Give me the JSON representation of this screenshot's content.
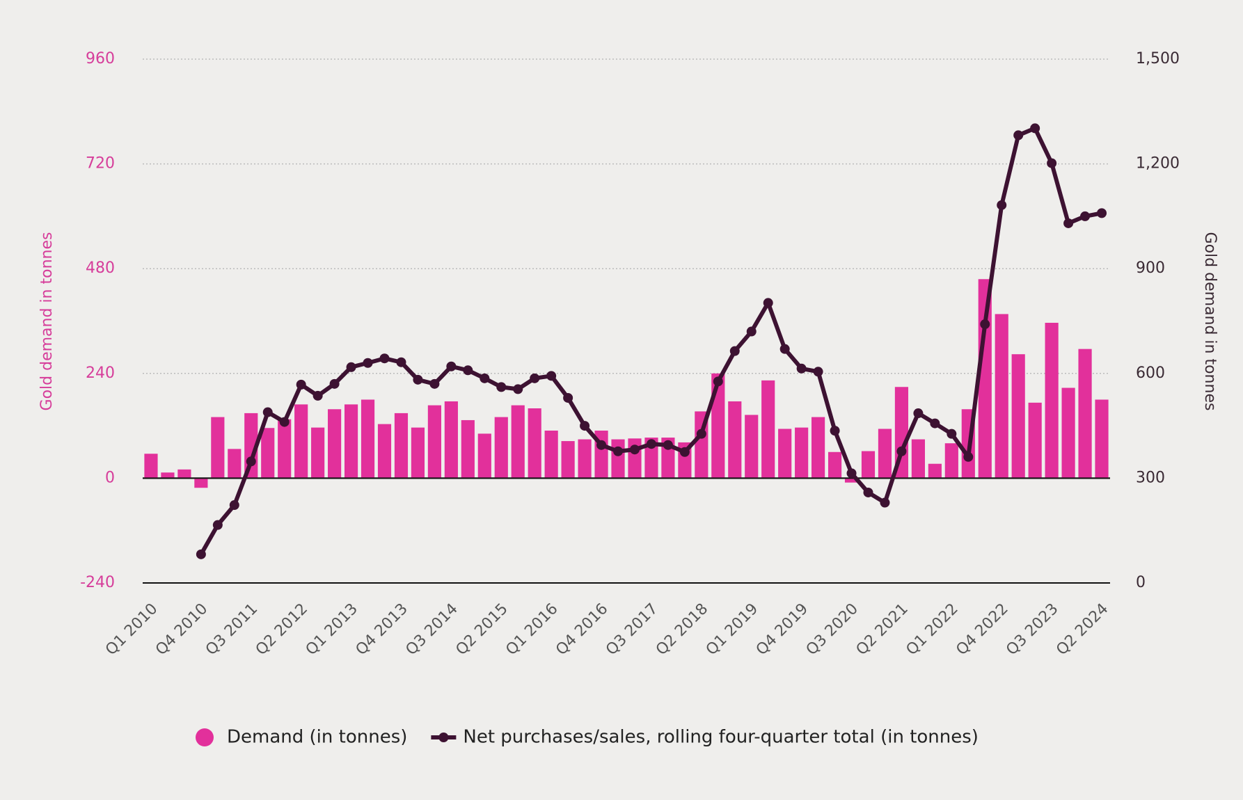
{
  "chart_data": {
    "type": "bar",
    "ylabel": "Gold demand in tonnes",
    "y2label": "Gold demand in tonnes",
    "categories": [
      "Q1 2010",
      null,
      null,
      "Q4 2010",
      null,
      null,
      "Q3 2011",
      null,
      null,
      "Q2 2012",
      null,
      null,
      "Q1 2013",
      null,
      null,
      "Q4 2013",
      null,
      null,
      "Q3 2014",
      null,
      null,
      "Q2 2015",
      null,
      null,
      "Q1 2016",
      null,
      null,
      "Q4 2016",
      null,
      null,
      "Q3 2017",
      null,
      null,
      "Q2 2018",
      null,
      null,
      "Q1 2019",
      null,
      null,
      "Q4 2019",
      null,
      null,
      "Q3 2020",
      null,
      null,
      "Q2 2021",
      null,
      null,
      "Q1 2022",
      null,
      null,
      "Q4 2022",
      null,
      null,
      "Q3 2023",
      null,
      null,
      "Q2 2024"
    ],
    "series": [
      {
        "name": "Demand (in tonnes)",
        "type": "bar",
        "axis": "y",
        "color": "#e2309b",
        "values": [
          56,
          13,
          20,
          -22,
          140,
          67,
          149,
          115,
          135,
          169,
          116,
          158,
          169,
          180,
          124,
          149,
          116,
          167,
          176,
          133,
          102,
          140,
          167,
          160,
          109,
          85,
          89,
          109,
          89,
          91,
          93,
          93,
          82,
          153,
          240,
          176,
          145,
          224,
          113,
          116,
          140,
          60,
          -10,
          62,
          113,
          209,
          89,
          33,
          80,
          158,
          456,
          376,
          284,
          173,
          356,
          207,
          296,
          180
        ]
      },
      {
        "name": "Net purchases/sales, rolling four-quarter total (in tonnes)",
        "type": "line",
        "axis": "y2",
        "color": "#3d1232",
        "values": [
          null,
          null,
          null,
          82,
          166,
          223,
          348,
          489,
          461,
          568,
          536,
          570,
          618,
          630,
          643,
          632,
          582,
          570,
          620,
          609,
          586,
          561,
          555,
          586,
          593,
          530,
          450,
          395,
          377,
          382,
          398,
          395,
          375,
          427,
          577,
          664,
          720,
          802,
          670,
          614,
          605,
          436,
          314,
          259,
          230,
          377,
          486,
          457,
          427,
          361,
          741,
          1082,
          1282,
          1302,
          1202,
          1030,
          1050,
          1059
        ]
      }
    ],
    "ylim": [
      -240,
      960
    ],
    "yticks": [
      -240,
      0,
      240,
      480,
      720,
      960
    ],
    "y2lim": [
      0,
      1500
    ],
    "y2ticks": [
      0,
      300,
      600,
      900,
      {
        "value": 1200,
        "label": "1,200"
      },
      {
        "value": 1500,
        "label": "1,500"
      }
    ],
    "grid": true,
    "legend": "bottom"
  }
}
